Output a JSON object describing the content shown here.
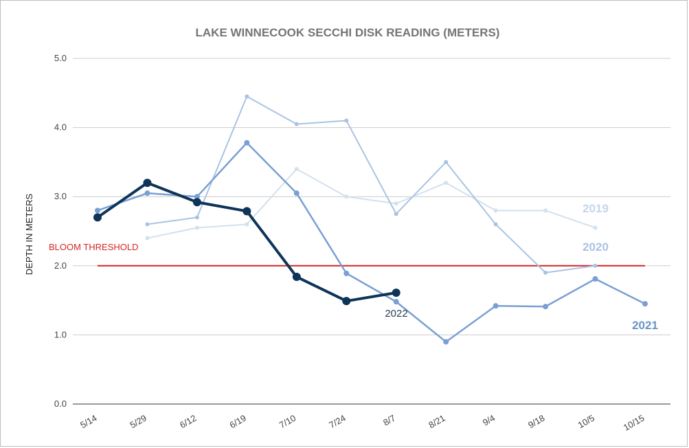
{
  "chart_data": {
    "type": "line",
    "title": "LAKE WINNECOOK SECCHI DISK READING (METERS)",
    "xlabel": "",
    "ylabel": "DEPTH IN METERS",
    "categories": [
      "5/14",
      "5/29",
      "6/12",
      "6/19",
      "7/10",
      "7/24",
      "8/7",
      "8/21",
      "9/4",
      "9/18",
      "10/5",
      "10/15"
    ],
    "ylim": [
      0,
      5
    ],
    "yticks": [
      "0.0",
      "1.0",
      "2.0",
      "3.0",
      "4.0",
      "5.0"
    ],
    "grid": true,
    "series": [
      {
        "name": "2019",
        "color": "#d3e0ee",
        "width": 2,
        "marker": 3,
        "values": [
          null,
          2.4,
          2.55,
          2.6,
          3.4,
          3.0,
          2.9,
          3.2,
          2.8,
          2.8,
          2.55,
          null
        ]
      },
      {
        "name": "2020",
        "color": "#a9c3e3",
        "width": 2,
        "marker": 3,
        "values": [
          null,
          2.6,
          2.7,
          4.45,
          4.05,
          4.1,
          2.75,
          3.5,
          2.6,
          1.9,
          2.0,
          null
        ]
      },
      {
        "name": "2021",
        "color": "#7a9fd3",
        "width": 2.5,
        "marker": 4,
        "values": [
          2.8,
          3.05,
          3.0,
          3.78,
          3.05,
          1.89,
          1.48,
          0.9,
          1.42,
          1.41,
          1.81,
          1.45
        ]
      },
      {
        "name": "2022",
        "color": "#0e3559",
        "width": 4,
        "marker": 6,
        "values": [
          2.7,
          3.2,
          2.92,
          2.79,
          1.84,
          1.49,
          1.61,
          null,
          null,
          null,
          null,
          null
        ]
      }
    ],
    "series_labels": [
      {
        "text": "2019",
        "color": "#c5d6ea"
      },
      {
        "text": "2020",
        "color": "#a9c3e3"
      },
      {
        "text": "2021",
        "color": "#6b93c4"
      },
      {
        "text": "2022",
        "color": "#2b3f55"
      }
    ],
    "threshold": {
      "label": "BLOOM THRESHOLD",
      "value": 2.0,
      "color": "#d62424",
      "from": "5/14",
      "to": "10/15"
    }
  }
}
